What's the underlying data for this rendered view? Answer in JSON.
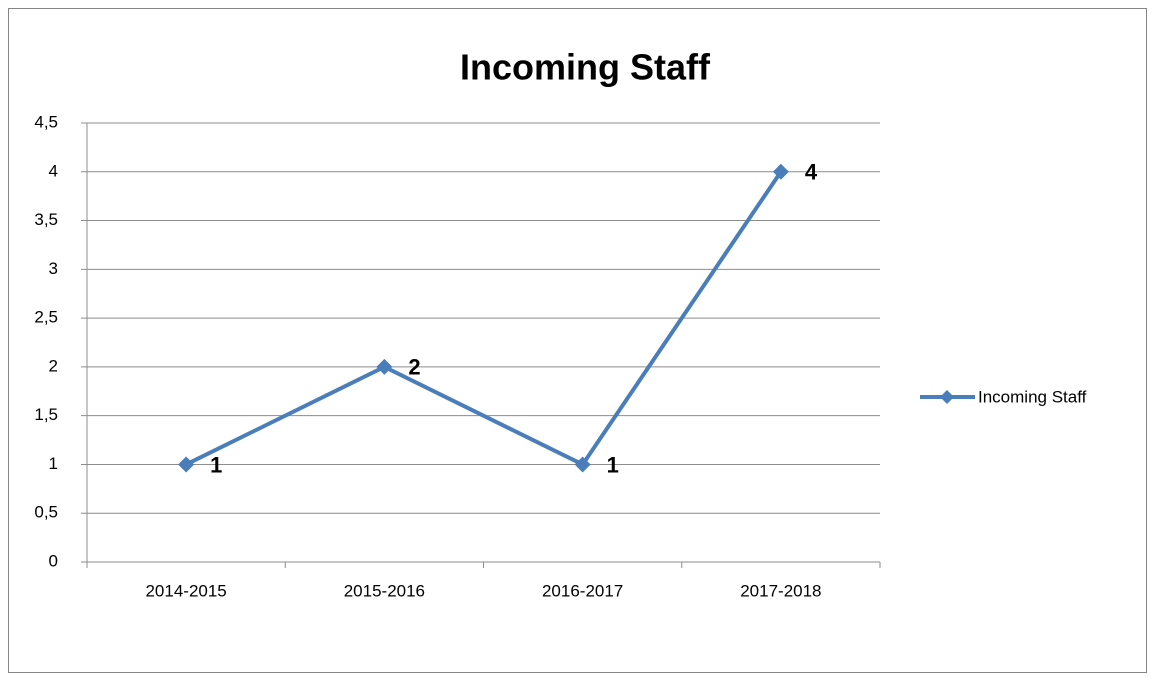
{
  "chart_data": {
    "type": "line",
    "title": "Incoming Staff",
    "categories": [
      "2014-2015",
      "2015-2016",
      "2016-2017",
      "2017-2018"
    ],
    "series": [
      {
        "name": "Incoming Staff",
        "color": "#4a7ebb",
        "values": [
          1,
          2,
          1,
          4
        ]
      }
    ],
    "ylim": [
      0,
      4.5
    ],
    "yticks": [
      0,
      {
        "value": 0.5,
        "label": "0,5"
      },
      1,
      {
        "value": 1.5,
        "label": "1,5"
      },
      2,
      {
        "value": 2.5,
        "label": "2,5"
      },
      3,
      {
        "value": 3.5,
        "label": "3,5"
      },
      4,
      {
        "value": 4.5,
        "label": "4,5"
      }
    ],
    "grid": true,
    "legend": "right"
  }
}
